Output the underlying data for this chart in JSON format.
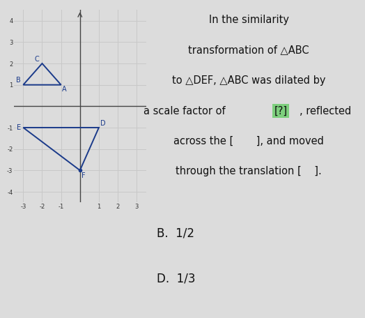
{
  "background_color": "#dcdcdc",
  "graph_bg": "#e8e8e8",
  "grid_color": "#c8c8c8",
  "axis_color": "#444444",
  "xlim": [
    -3.5,
    3.5
  ],
  "ylim": [
    -4.5,
    4.5
  ],
  "xticks": [
    -3,
    -2,
    -1,
    0,
    1,
    2,
    3
  ],
  "yticks": [
    -4,
    -3,
    -2,
    -1,
    0,
    1,
    2,
    3,
    4
  ],
  "triangle_ABC": {
    "B": [
      -3,
      1
    ],
    "A": [
      -1,
      1
    ],
    "C": [
      -2,
      2
    ],
    "color": "#1a3a8a"
  },
  "triangle_DEF": {
    "E": [
      -3,
      -1
    ],
    "D": [
      1,
      -1
    ],
    "F": [
      0,
      -3
    ],
    "color": "#1a3a8a"
  },
  "text_lines": [
    "In the similarity",
    "transformation of △ABC",
    "to △DEF, △ABC was dilated by",
    "a scale factor of [?], reflected",
    "across the [       ], and moved",
    "through the translation [    ]."
  ],
  "highlight_color": "#7dcf7d",
  "text_color": "#111111",
  "text_fontsize": 10.5,
  "answer_B": "B.  1/2",
  "answer_D": "D.  1/3",
  "answer_fontsize": 12,
  "answer_color": "#111111"
}
